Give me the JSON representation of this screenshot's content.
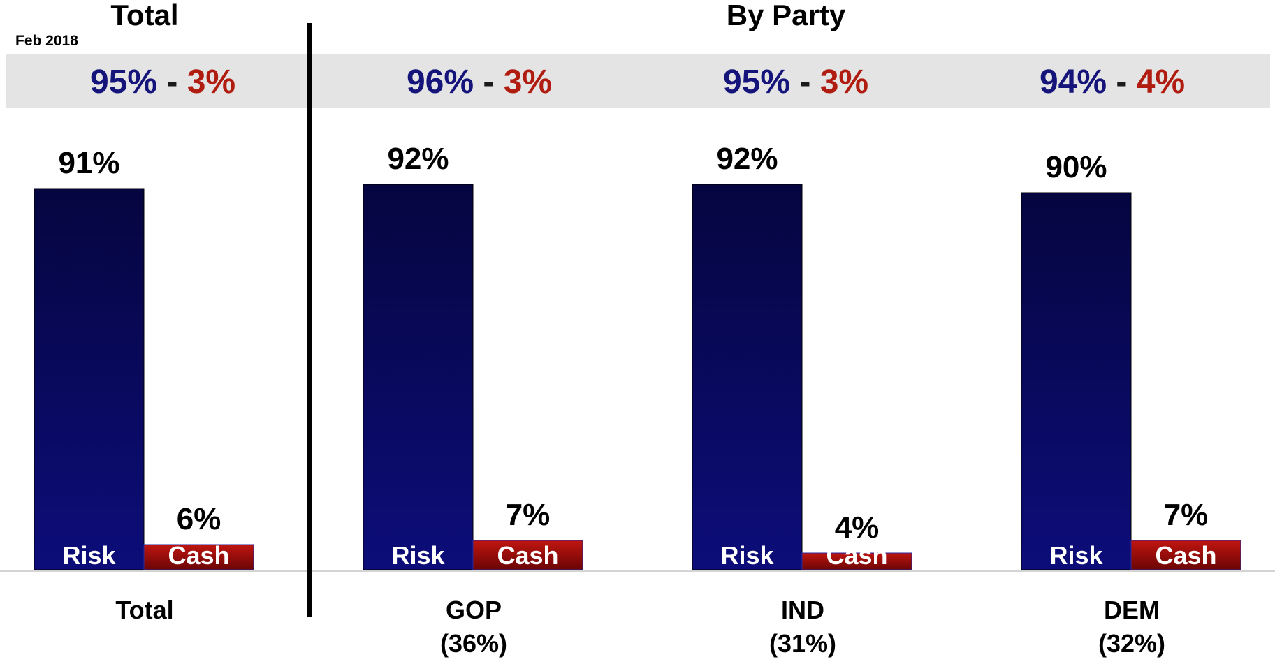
{
  "headers": {
    "total": "Total",
    "by_party": "By Party"
  },
  "date_label": "Feb 2018",
  "colors": {
    "risk": "#0d0d6b",
    "cash": "#a01010",
    "risk_text": "#14147a",
    "cash_text": "#b01c10",
    "separator": "#000000"
  },
  "chart_data": {
    "type": "bar",
    "categories": [
      "Total",
      "GOP",
      "IND",
      "DEM"
    ],
    "category_sublabels": [
      "",
      "(36%)",
      "(31%)",
      "(32%)"
    ],
    "series": [
      {
        "name": "Risk",
        "values": [
          91,
          92,
          92,
          90
        ]
      },
      {
        "name": "Cash",
        "values": [
          6,
          7,
          4,
          7
        ]
      }
    ],
    "data_labels": {
      "Risk": [
        "91%",
        "92%",
        "92%",
        "90%"
      ],
      "Cash": [
        "6%",
        "7%",
        "4%",
        "7%"
      ]
    },
    "summary": [
      {
        "left": "95%",
        "sep": "-",
        "right": "3%"
      },
      {
        "left": "96%",
        "sep": "-",
        "right": "3%"
      },
      {
        "left": "95%",
        "sep": "-",
        "right": "3%"
      },
      {
        "left": "94%",
        "sep": "-",
        "right": "4%"
      }
    ],
    "ylim": [
      0,
      100
    ],
    "grid": false,
    "legend": "none"
  }
}
